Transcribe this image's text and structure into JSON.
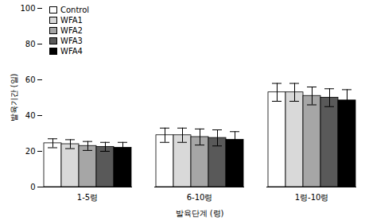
{
  "chart_data": {
    "type": "bar",
    "x_label": "발육단계 (령)",
    "y_label": "발육기간 (일)",
    "categories": [
      "1-5령",
      "6-10령",
      "1령-10령"
    ],
    "series": [
      {
        "name": "Control",
        "color": "#ffffff",
        "values": [
          24.5,
          29,
          53
        ],
        "errors": [
          2.5,
          4,
          5
        ]
      },
      {
        "name": "WFA1",
        "color": "#d9d9d9",
        "values": [
          24,
          29,
          53
        ],
        "errors": [
          2.5,
          4,
          5
        ]
      },
      {
        "name": "WFA2",
        "color": "#a6a6a6",
        "values": [
          23,
          28,
          51
        ],
        "errors": [
          2.5,
          4.5,
          5
        ]
      },
      {
        "name": "WFA3",
        "color": "#595959",
        "values": [
          22.5,
          27.5,
          50
        ],
        "errors": [
          2.5,
          4.5,
          5
        ]
      },
      {
        "name": "WFA4",
        "color": "#000000",
        "values": [
          22,
          26.5,
          48.5
        ],
        "errors": [
          3,
          4.5,
          6
        ]
      }
    ],
    "ylim": [
      0,
      100
    ],
    "yticks": [
      0,
      20,
      40,
      60,
      80,
      100
    ],
    "grid": false,
    "legend": "top-left"
  }
}
